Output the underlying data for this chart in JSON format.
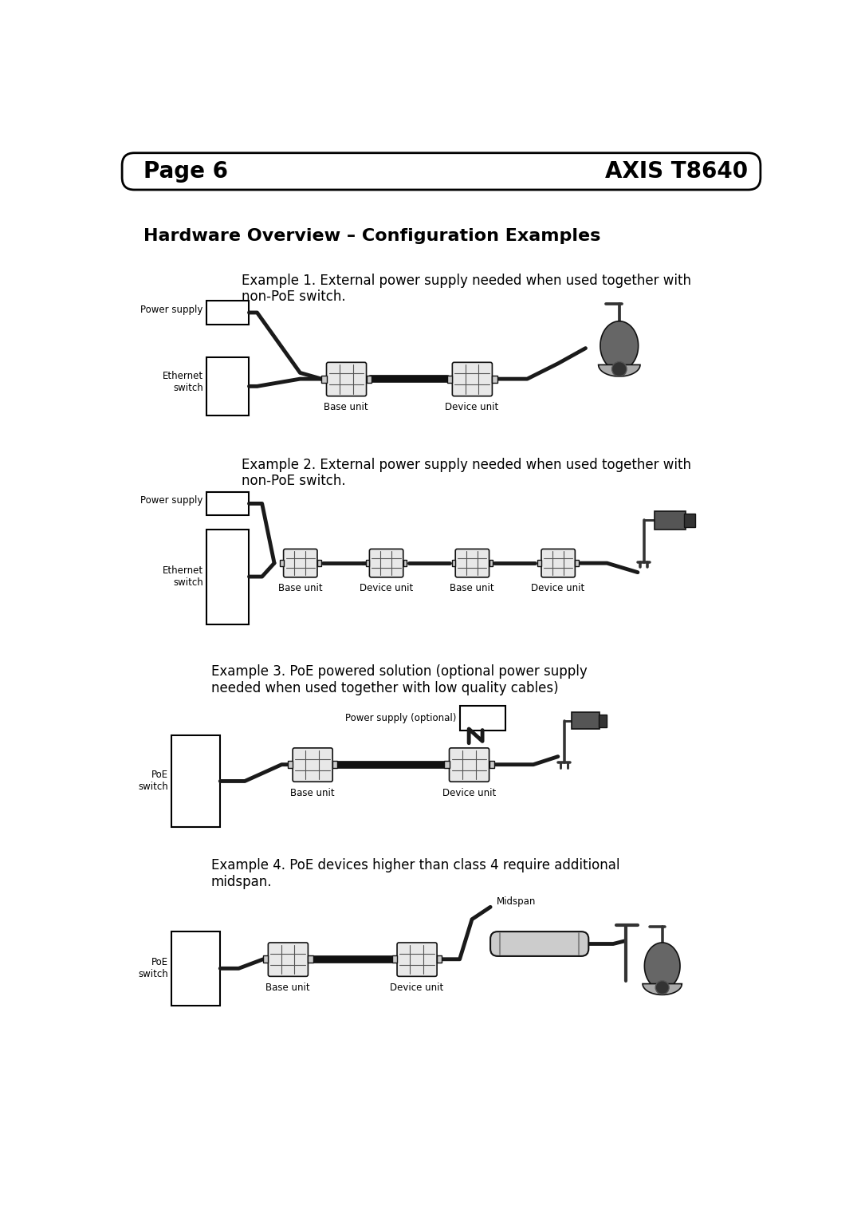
{
  "page_label": "Page 6",
  "product_label": "AXIS T8640",
  "title": "Hardware Overview – Configuration Examples",
  "example1_text": "Example 1. External power supply needed when used together with\nnon-PoE switch.",
  "example2_text": "Example 2. External power supply needed when used together with\nnon-PoE switch.",
  "example3_text": "Example 3. PoE powered solution (optional power supply\nneeded when used together with low quality cables)",
  "example4_text": "Example 4. PoE devices higher than class 4 require additional\nmidspan.",
  "bg_color": "#ffffff",
  "text_color": "#000000",
  "header_font_size": 20,
  "title_font_size": 16,
  "example_font_size": 12,
  "label_font_size": 8.5
}
